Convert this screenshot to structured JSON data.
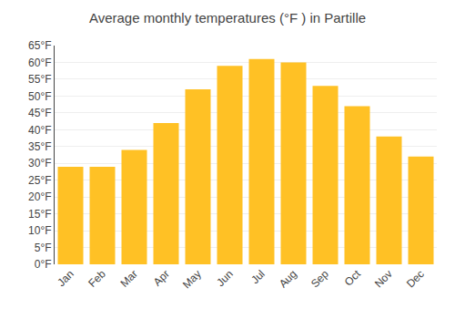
{
  "chart_data": {
    "type": "bar",
    "title": "Average monthly temperatures (°F ) in Partille",
    "categories": [
      "Jan",
      "Feb",
      "Mar",
      "Apr",
      "May",
      "Jun",
      "Jul",
      "Aug",
      "Sep",
      "Oct",
      "Nov",
      "Dec"
    ],
    "values": [
      29,
      29,
      34,
      42,
      52,
      59,
      61,
      60,
      53,
      47,
      38,
      32
    ],
    "color": "#FFC125",
    "ylim": [
      0,
      65
    ],
    "yticks": [
      {
        "value": 0,
        "label": "0°F"
      },
      {
        "value": 5,
        "label": "5°F"
      },
      {
        "value": 10,
        "label": "10°F"
      },
      {
        "value": 15,
        "label": "15°F"
      },
      {
        "value": 20,
        "label": "20°F"
      },
      {
        "value": 25,
        "label": "25°F"
      },
      {
        "value": 30,
        "label": "30°F"
      },
      {
        "value": 35,
        "label": "35°F"
      },
      {
        "value": 40,
        "label": "40°F"
      },
      {
        "value": 45,
        "label": "45°F"
      },
      {
        "value": 50,
        "label": "50°F"
      },
      {
        "value": 55,
        "label": "55°F"
      },
      {
        "value": 60,
        "label": "60°F"
      },
      {
        "value": 65,
        "label": "65°F"
      }
    ],
    "grid": true
  }
}
